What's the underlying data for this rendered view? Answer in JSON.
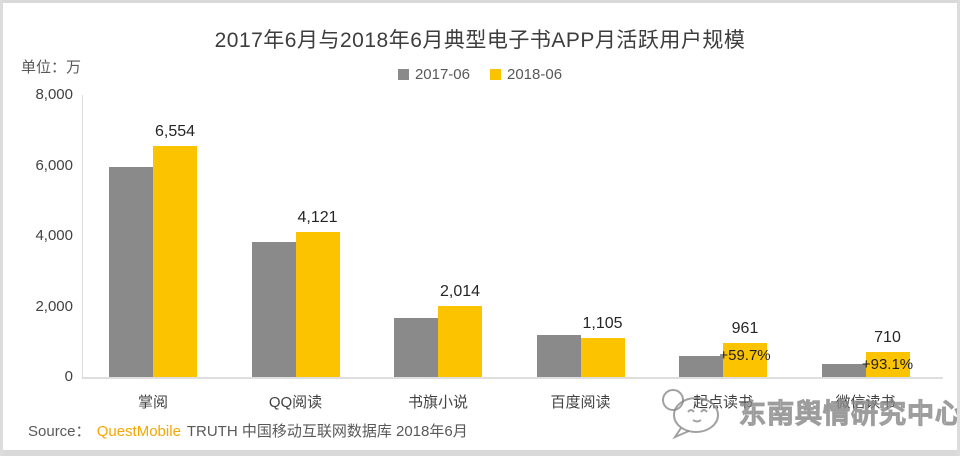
{
  "title": "2017年6月与2018年6月典型电子书APP月活跃用户规模",
  "unit_label": "单位：万",
  "legend": [
    {
      "label": "2017-06",
      "color": "#8a8a8a"
    },
    {
      "label": "2018-06",
      "color": "#fcc400"
    }
  ],
  "chart_data": {
    "type": "bar",
    "title": "2017年6月与2018年6月典型电子书APP月活跃用户规模",
    "unit": "万",
    "categories": [
      "掌阅",
      "QQ阅读",
      "书旗小说",
      "百度阅读",
      "起点读书",
      "微信读书"
    ],
    "series": [
      {
        "name": "2017-06",
        "color": "#8a8a8a",
        "estimated_from_pixels": true,
        "values": [
          5950,
          3840,
          1660,
          1180,
          600,
          370
        ]
      },
      {
        "name": "2018-06",
        "color": "#fcc400",
        "values": [
          6554,
          4121,
          2014,
          1105,
          961,
          710
        ],
        "data_labels": [
          "6,554",
          "4,121",
          "2,014",
          "1,105",
          "961",
          "710"
        ]
      }
    ],
    "growth_labels": [
      {
        "category": "起点读书",
        "category_index": 4,
        "text": "+59.7%"
      },
      {
        "category": "微信读书",
        "category_index": 5,
        "text": "+93.1%"
      }
    ],
    "ylim": [
      0,
      8000
    ],
    "y_ticks": [
      "8,000",
      "6,000",
      "4,000",
      "2,000",
      "0"
    ],
    "grid": false,
    "legend_position": "top"
  },
  "source": {
    "prefix": "Source：",
    "brand": "QuestMobile",
    "brand_color": "#f7a600",
    "rest": "TRUTH 中国移动互联网数据库 2018年6月"
  },
  "watermark": {
    "text": "东南舆情研究中心"
  },
  "colors": {
    "bar_2017": "#8a8a8a",
    "bar_2018": "#fcc400",
    "axis": "#dedede",
    "edge": "#d9d9d9",
    "text": "#3d3d3d"
  }
}
